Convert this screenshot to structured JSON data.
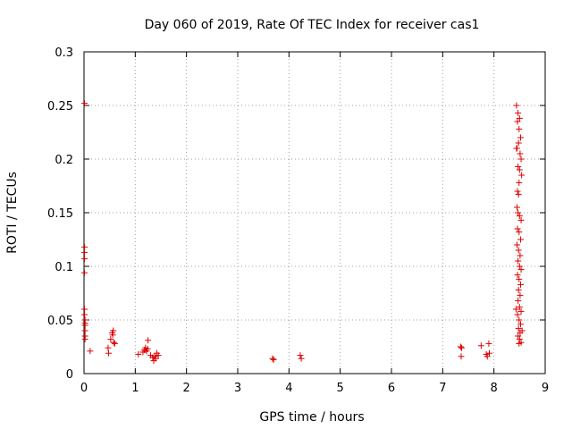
{
  "chart_data": {
    "type": "scatter",
    "title": "Day 060 of 2019, Rate Of TEC Index for receiver cas1",
    "xlabel": "GPS time / hours",
    "ylabel": "ROTI / TECUs",
    "xlim": [
      0,
      9
    ],
    "ylim": [
      0,
      0.3
    ],
    "grid": true,
    "legend": "none",
    "marker": "+",
    "series_color": "#dd0000",
    "x_ticks": [
      {
        "value": 0,
        "label": "0"
      },
      {
        "value": 1,
        "label": "1"
      },
      {
        "value": 2,
        "label": "2"
      },
      {
        "value": 3,
        "label": "3"
      },
      {
        "value": 4,
        "label": "4"
      },
      {
        "value": 5,
        "label": "5"
      },
      {
        "value": 6,
        "label": "6"
      },
      {
        "value": 7,
        "label": "7"
      },
      {
        "value": 8,
        "label": "8"
      },
      {
        "value": 9,
        "label": "9"
      }
    ],
    "y_ticks": [
      {
        "value": 0,
        "label": "0"
      },
      {
        "value": 0.05,
        "label": "0.05"
      },
      {
        "value": 0.1,
        "label": "0.1"
      },
      {
        "value": 0.15,
        "label": "0.15"
      },
      {
        "value": 0.2,
        "label": "0.2"
      },
      {
        "value": 0.25,
        "label": "0.25"
      },
      {
        "value": 0.3,
        "label": "0.3"
      }
    ],
    "series": [
      {
        "name": "cas1",
        "points": [
          [
            0.01,
            0.252
          ],
          [
            0.01,
            0.118
          ],
          [
            0.01,
            0.113
          ],
          [
            0.01,
            0.107
          ],
          [
            0.01,
            0.094
          ],
          [
            0.01,
            0.06
          ],
          [
            0.01,
            0.055
          ],
          [
            0.02,
            0.05
          ],
          [
            0.02,
            0.047
          ],
          [
            0.02,
            0.045
          ],
          [
            0.02,
            0.04
          ],
          [
            0.02,
            0.035
          ],
          [
            0.02,
            0.032
          ],
          [
            0.12,
            0.021
          ],
          [
            0.47,
            0.024
          ],
          [
            0.48,
            0.019
          ],
          [
            0.52,
            0.032
          ],
          [
            0.55,
            0.038
          ],
          [
            0.57,
            0.04
          ],
          [
            0.56,
            0.036
          ],
          [
            0.58,
            0.029
          ],
          [
            0.6,
            0.028
          ],
          [
            1.06,
            0.018
          ],
          [
            1.15,
            0.02
          ],
          [
            1.18,
            0.022
          ],
          [
            1.2,
            0.024
          ],
          [
            1.22,
            0.021
          ],
          [
            1.24,
            0.023
          ],
          [
            1.25,
            0.031
          ],
          [
            1.3,
            0.017
          ],
          [
            1.34,
            0.015
          ],
          [
            1.36,
            0.012
          ],
          [
            1.38,
            0.016
          ],
          [
            1.4,
            0.014
          ],
          [
            1.42,
            0.019
          ],
          [
            1.45,
            0.017
          ],
          [
            3.68,
            0.014
          ],
          [
            3.7,
            0.013
          ],
          [
            4.22,
            0.017
          ],
          [
            4.24,
            0.014
          ],
          [
            7.35,
            0.025
          ],
          [
            7.37,
            0.024
          ],
          [
            7.36,
            0.016
          ],
          [
            7.75,
            0.026
          ],
          [
            7.85,
            0.018
          ],
          [
            7.87,
            0.016
          ],
          [
            7.9,
            0.028
          ],
          [
            7.91,
            0.019
          ],
          [
            8.44,
            0.25
          ],
          [
            8.47,
            0.243
          ],
          [
            8.5,
            0.238
          ],
          [
            8.46,
            0.235
          ],
          [
            8.49,
            0.228
          ],
          [
            8.52,
            0.22
          ],
          [
            8.48,
            0.215
          ],
          [
            8.45,
            0.21
          ],
          [
            8.51,
            0.205
          ],
          [
            8.53,
            0.2
          ],
          [
            8.47,
            0.193
          ],
          [
            8.5,
            0.19
          ],
          [
            8.49,
            0.178
          ],
          [
            8.46,
            0.17
          ],
          [
            8.48,
            0.167
          ],
          [
            8.45,
            0.155
          ],
          [
            8.47,
            0.15
          ],
          [
            8.5,
            0.147
          ],
          [
            8.53,
            0.143
          ],
          [
            8.46,
            0.135
          ],
          [
            8.49,
            0.132
          ],
          [
            8.52,
            0.125
          ],
          [
            8.45,
            0.12
          ],
          [
            8.48,
            0.115
          ],
          [
            8.51,
            0.11
          ],
          [
            8.47,
            0.105
          ],
          [
            8.5,
            0.1
          ],
          [
            8.53,
            0.097
          ],
          [
            8.46,
            0.092
          ],
          [
            8.49,
            0.088
          ],
          [
            8.52,
            0.083
          ],
          [
            8.48,
            0.078
          ],
          [
            8.51,
            0.073
          ],
          [
            8.47,
            0.068
          ],
          [
            8.5,
            0.062
          ],
          [
            8.53,
            0.058
          ],
          [
            8.46,
            0.055
          ],
          [
            8.49,
            0.05
          ],
          [
            8.52,
            0.046
          ],
          [
            8.48,
            0.042
          ],
          [
            8.51,
            0.038
          ],
          [
            8.47,
            0.035
          ],
          [
            8.5,
            0.032
          ],
          [
            8.53,
            0.029
          ],
          [
            8.49,
            0.028
          ],
          [
            8.44,
            0.21
          ],
          [
            8.54,
            0.185
          ],
          [
            8.43,
            0.06
          ],
          [
            8.55,
            0.04
          ]
        ]
      }
    ]
  }
}
